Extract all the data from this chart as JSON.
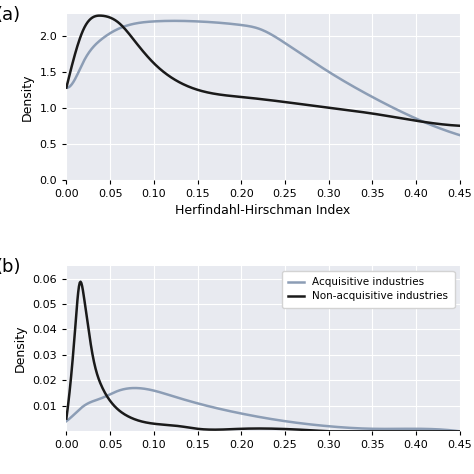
{
  "panel_a": {
    "xlabel": "Herfindahl-Hirschman Index",
    "ylabel": "Density",
    "xlim": [
      0.0,
      0.45
    ],
    "ylim": [
      0.0,
      2.3
    ],
    "yticks": [
      0.0,
      0.5,
      1.0,
      1.5,
      2.0
    ],
    "xticks": [
      0.0,
      0.05,
      0.1,
      0.15,
      0.2,
      0.25,
      0.3,
      0.35,
      0.4,
      0.45
    ],
    "acquisitive_color": "#8c9db5",
    "nonacquisitive_color": "#1a1a1a",
    "bg_color": "#e8eaf0"
  },
  "panel_b": {
    "xlabel": "",
    "ylabel": "Density",
    "xlim": [
      0.0,
      0.45
    ],
    "ylim": [
      0.0,
      0.065
    ],
    "yticks": [
      0.01,
      0.02,
      0.03,
      0.04,
      0.05,
      0.06
    ],
    "xticks": [
      0.0,
      0.05,
      0.1,
      0.15,
      0.2,
      0.25,
      0.3,
      0.35,
      0.4,
      0.45
    ],
    "acquisitive_color": "#8c9db5",
    "nonacquisitive_color": "#1a1a1a",
    "bg_color": "#e8eaf0",
    "legend_entries": [
      "Acquisitive industries",
      "Non-acquisitive industries"
    ]
  },
  "label_fontsize": 9,
  "tick_fontsize": 8,
  "panel_label_fontsize": 13,
  "line_width": 1.8,
  "grid_color": "#ffffff",
  "grid_alpha": 1.0,
  "panel_a_acq_points_x": [
    0.0,
    0.01,
    0.02,
    0.04,
    0.06,
    0.1,
    0.15,
    0.2,
    0.22,
    0.25,
    0.3,
    0.35,
    0.4,
    0.45
  ],
  "panel_a_acq_points_y": [
    1.28,
    1.4,
    1.65,
    1.95,
    2.1,
    2.2,
    2.2,
    2.15,
    2.1,
    1.9,
    1.5,
    1.15,
    0.85,
    0.62
  ],
  "panel_a_nonacq_points_x": [
    0.0,
    0.01,
    0.02,
    0.04,
    0.06,
    0.08,
    0.1,
    0.13,
    0.15,
    0.2,
    0.25,
    0.3,
    0.35,
    0.4,
    0.45
  ],
  "panel_a_nonacq_points_y": [
    1.28,
    1.75,
    2.1,
    2.28,
    2.18,
    1.9,
    1.62,
    1.35,
    1.25,
    1.15,
    1.08,
    1.0,
    0.92,
    0.82,
    0.75
  ],
  "panel_b_acq_points_x": [
    0.0,
    0.01,
    0.02,
    0.04,
    0.06,
    0.08,
    0.1,
    0.12,
    0.15,
    0.2,
    0.25,
    0.3,
    0.35,
    0.4,
    0.45
  ],
  "panel_b_acq_points_y": [
    0.004,
    0.007,
    0.01,
    0.013,
    0.016,
    0.017,
    0.016,
    0.014,
    0.011,
    0.007,
    0.004,
    0.002,
    0.001,
    0.001,
    0.0
  ],
  "panel_b_nonacq_points_x": [
    0.0,
    0.005,
    0.01,
    0.015,
    0.02,
    0.03,
    0.04,
    0.05,
    0.07,
    0.1,
    0.13,
    0.15,
    0.2,
    0.3,
    0.45
  ],
  "panel_b_nonacq_points_y": [
    0.005,
    0.02,
    0.04,
    0.058,
    0.053,
    0.03,
    0.018,
    0.012,
    0.006,
    0.003,
    0.002,
    0.001,
    0.001,
    0.0,
    0.0
  ]
}
